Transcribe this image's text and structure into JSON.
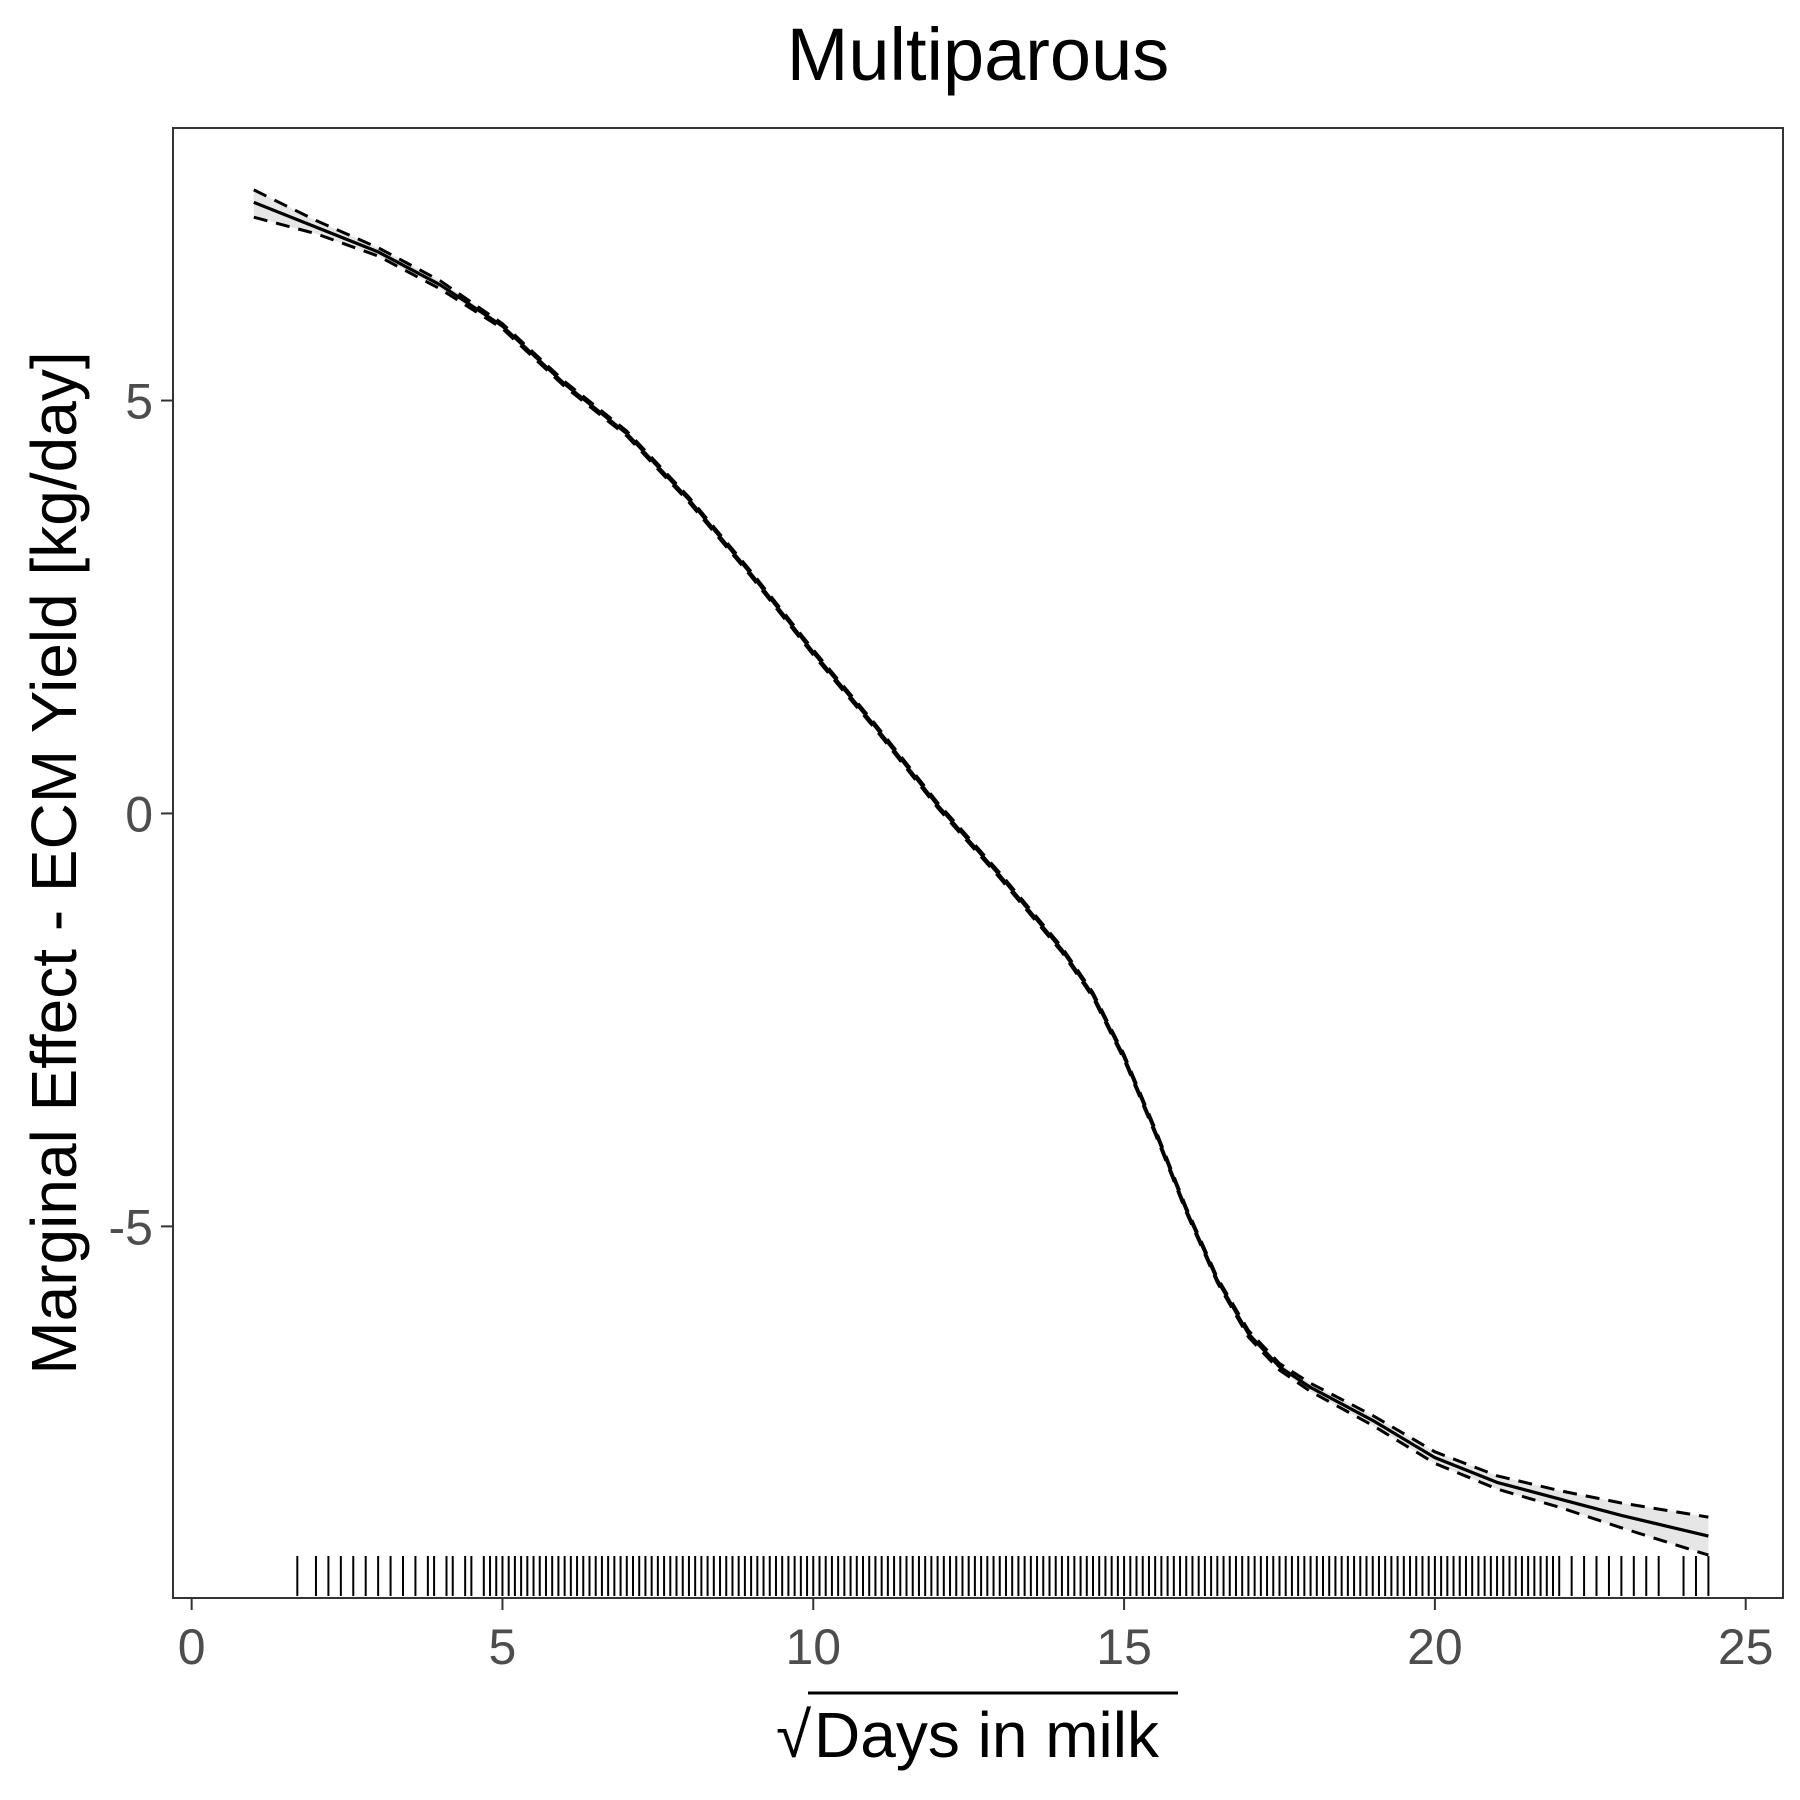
{
  "chart_data": {
    "type": "line",
    "title": "Multiparous",
    "xlabel": "Days in milk",
    "xlabel_prefix": "√",
    "ylabel": "Marginal Effect - ECM Yield [kg/day]",
    "xlim": [
      -0.3,
      25.6
    ],
    "ylim": [
      -9.5,
      8.3
    ],
    "x_ticks": [
      0,
      5,
      10,
      15,
      20,
      25
    ],
    "y_ticks": [
      -5,
      0,
      5
    ],
    "x_tick_labels": [
      "0",
      "5",
      "10",
      "15",
      "20",
      "25"
    ],
    "y_tick_labels": [
      "-5",
      "0",
      "5"
    ],
    "grid": false,
    "legend": "none",
    "series": [
      {
        "role": "estimate",
        "style": "solid",
        "x": [
          1.0,
          2.0,
          3.0,
          4.0,
          5.0,
          6.0,
          7.0,
          8.0,
          9.0,
          10.0,
          11.0,
          12.0,
          13.0,
          14.0,
          14.5,
          15.0,
          15.5,
          16.0,
          16.5,
          17.0,
          17.5,
          18.0,
          19.0,
          20.0,
          21.0,
          22.0,
          23.0,
          24.4
        ],
        "y": [
          7.4,
          7.1,
          6.8,
          6.4,
          5.9,
          5.2,
          4.6,
          3.8,
          2.9,
          1.95,
          1.05,
          0.1,
          -0.75,
          -1.65,
          -2.2,
          -2.95,
          -3.85,
          -4.8,
          -5.65,
          -6.3,
          -6.7,
          -6.95,
          -7.35,
          -7.8,
          -8.1,
          -8.3,
          -8.5,
          -8.75
        ]
      },
      {
        "role": "upper-bound",
        "style": "dashed",
        "x": [
          1.0,
          2.0,
          3.0,
          4.0,
          5.0,
          6.0,
          7.0,
          8.0,
          9.0,
          10.0,
          11.0,
          12.0,
          13.0,
          14.0,
          14.5,
          15.0,
          15.5,
          16.0,
          16.5,
          17.0,
          17.5,
          18.0,
          19.0,
          20.0,
          21.0,
          22.0,
          23.0,
          24.4
        ],
        "y": [
          7.55,
          7.18,
          6.85,
          6.45,
          5.93,
          5.23,
          4.63,
          3.83,
          2.93,
          1.98,
          1.08,
          0.13,
          -0.72,
          -1.62,
          -2.17,
          -2.92,
          -3.82,
          -4.77,
          -5.62,
          -6.26,
          -6.66,
          -6.9,
          -7.29,
          -7.73,
          -8.02,
          -8.2,
          -8.35,
          -8.52
        ]
      },
      {
        "role": "lower-bound",
        "style": "dashed",
        "x": [
          1.0,
          2.0,
          3.0,
          4.0,
          5.0,
          6.0,
          7.0,
          8.0,
          9.0,
          10.0,
          11.0,
          12.0,
          13.0,
          14.0,
          14.5,
          15.0,
          15.5,
          16.0,
          16.5,
          17.0,
          17.5,
          18.0,
          19.0,
          20.0,
          21.0,
          22.0,
          23.0,
          24.4
        ],
        "y": [
          7.22,
          7.02,
          6.75,
          6.35,
          5.87,
          5.17,
          4.57,
          3.77,
          2.87,
          1.92,
          1.02,
          0.07,
          -0.78,
          -1.68,
          -2.23,
          -2.98,
          -3.88,
          -4.83,
          -5.68,
          -6.34,
          -6.74,
          -7.0,
          -7.41,
          -7.87,
          -8.18,
          -8.4,
          -8.65,
          -8.98
        ]
      }
    ],
    "rug_x": [
      1.7,
      2.0,
      2.2,
      2.4,
      2.6,
      2.8,
      3.0,
      3.2,
      3.4,
      3.6,
      3.8,
      3.9,
      4.1,
      4.2,
      4.4,
      4.5,
      4.7,
      4.8,
      4.9,
      5.0,
      5.1,
      5.2,
      5.3,
      5.4,
      5.5,
      5.6,
      5.7,
      5.8,
      5.9,
      6.0,
      6.1,
      6.2,
      6.3,
      6.4,
      6.5,
      6.6,
      6.7,
      6.8,
      6.9,
      7.0,
      7.1,
      7.2,
      7.3,
      7.4,
      7.5,
      7.6,
      7.7,
      7.8,
      7.9,
      8.0,
      8.1,
      8.2,
      8.3,
      8.4,
      8.5,
      8.6,
      8.7,
      8.8,
      8.9,
      9.0,
      9.1,
      9.2,
      9.3,
      9.4,
      9.5,
      9.6,
      9.7,
      9.8,
      9.9,
      10.0,
      10.1,
      10.2,
      10.3,
      10.4,
      10.5,
      10.6,
      10.7,
      10.8,
      10.9,
      11.0,
      11.1,
      11.2,
      11.3,
      11.4,
      11.5,
      11.6,
      11.7,
      11.8,
      11.9,
      12.0,
      12.1,
      12.2,
      12.3,
      12.4,
      12.5,
      12.6,
      12.7,
      12.8,
      12.9,
      13.0,
      13.1,
      13.2,
      13.3,
      13.4,
      13.5,
      13.6,
      13.7,
      13.8,
      13.9,
      14.0,
      14.1,
      14.2,
      14.3,
      14.4,
      14.5,
      14.6,
      14.7,
      14.8,
      14.9,
      15.0,
      15.1,
      15.2,
      15.3,
      15.4,
      15.5,
      15.6,
      15.7,
      15.8,
      15.9,
      16.0,
      16.1,
      16.2,
      16.3,
      16.4,
      16.5,
      16.6,
      16.7,
      16.8,
      16.9,
      17.0,
      17.1,
      17.2,
      17.3,
      17.4,
      17.5,
      17.6,
      17.7,
      17.8,
      17.9,
      18.0,
      18.1,
      18.2,
      18.3,
      18.4,
      18.5,
      18.6,
      18.7,
      18.8,
      18.9,
      19.0,
      19.1,
      19.2,
      19.3,
      19.4,
      19.5,
      19.6,
      19.7,
      19.8,
      19.9,
      20.0,
      20.1,
      20.2,
      20.3,
      20.4,
      20.5,
      20.6,
      20.7,
      20.8,
      20.9,
      21.0,
      21.1,
      21.2,
      21.3,
      21.4,
      21.5,
      21.6,
      21.7,
      21.8,
      21.9,
      22.0,
      22.2,
      22.4,
      22.6,
      22.8,
      23.0,
      23.2,
      23.4,
      23.6,
      24.0,
      24.2,
      24.4
    ]
  }
}
